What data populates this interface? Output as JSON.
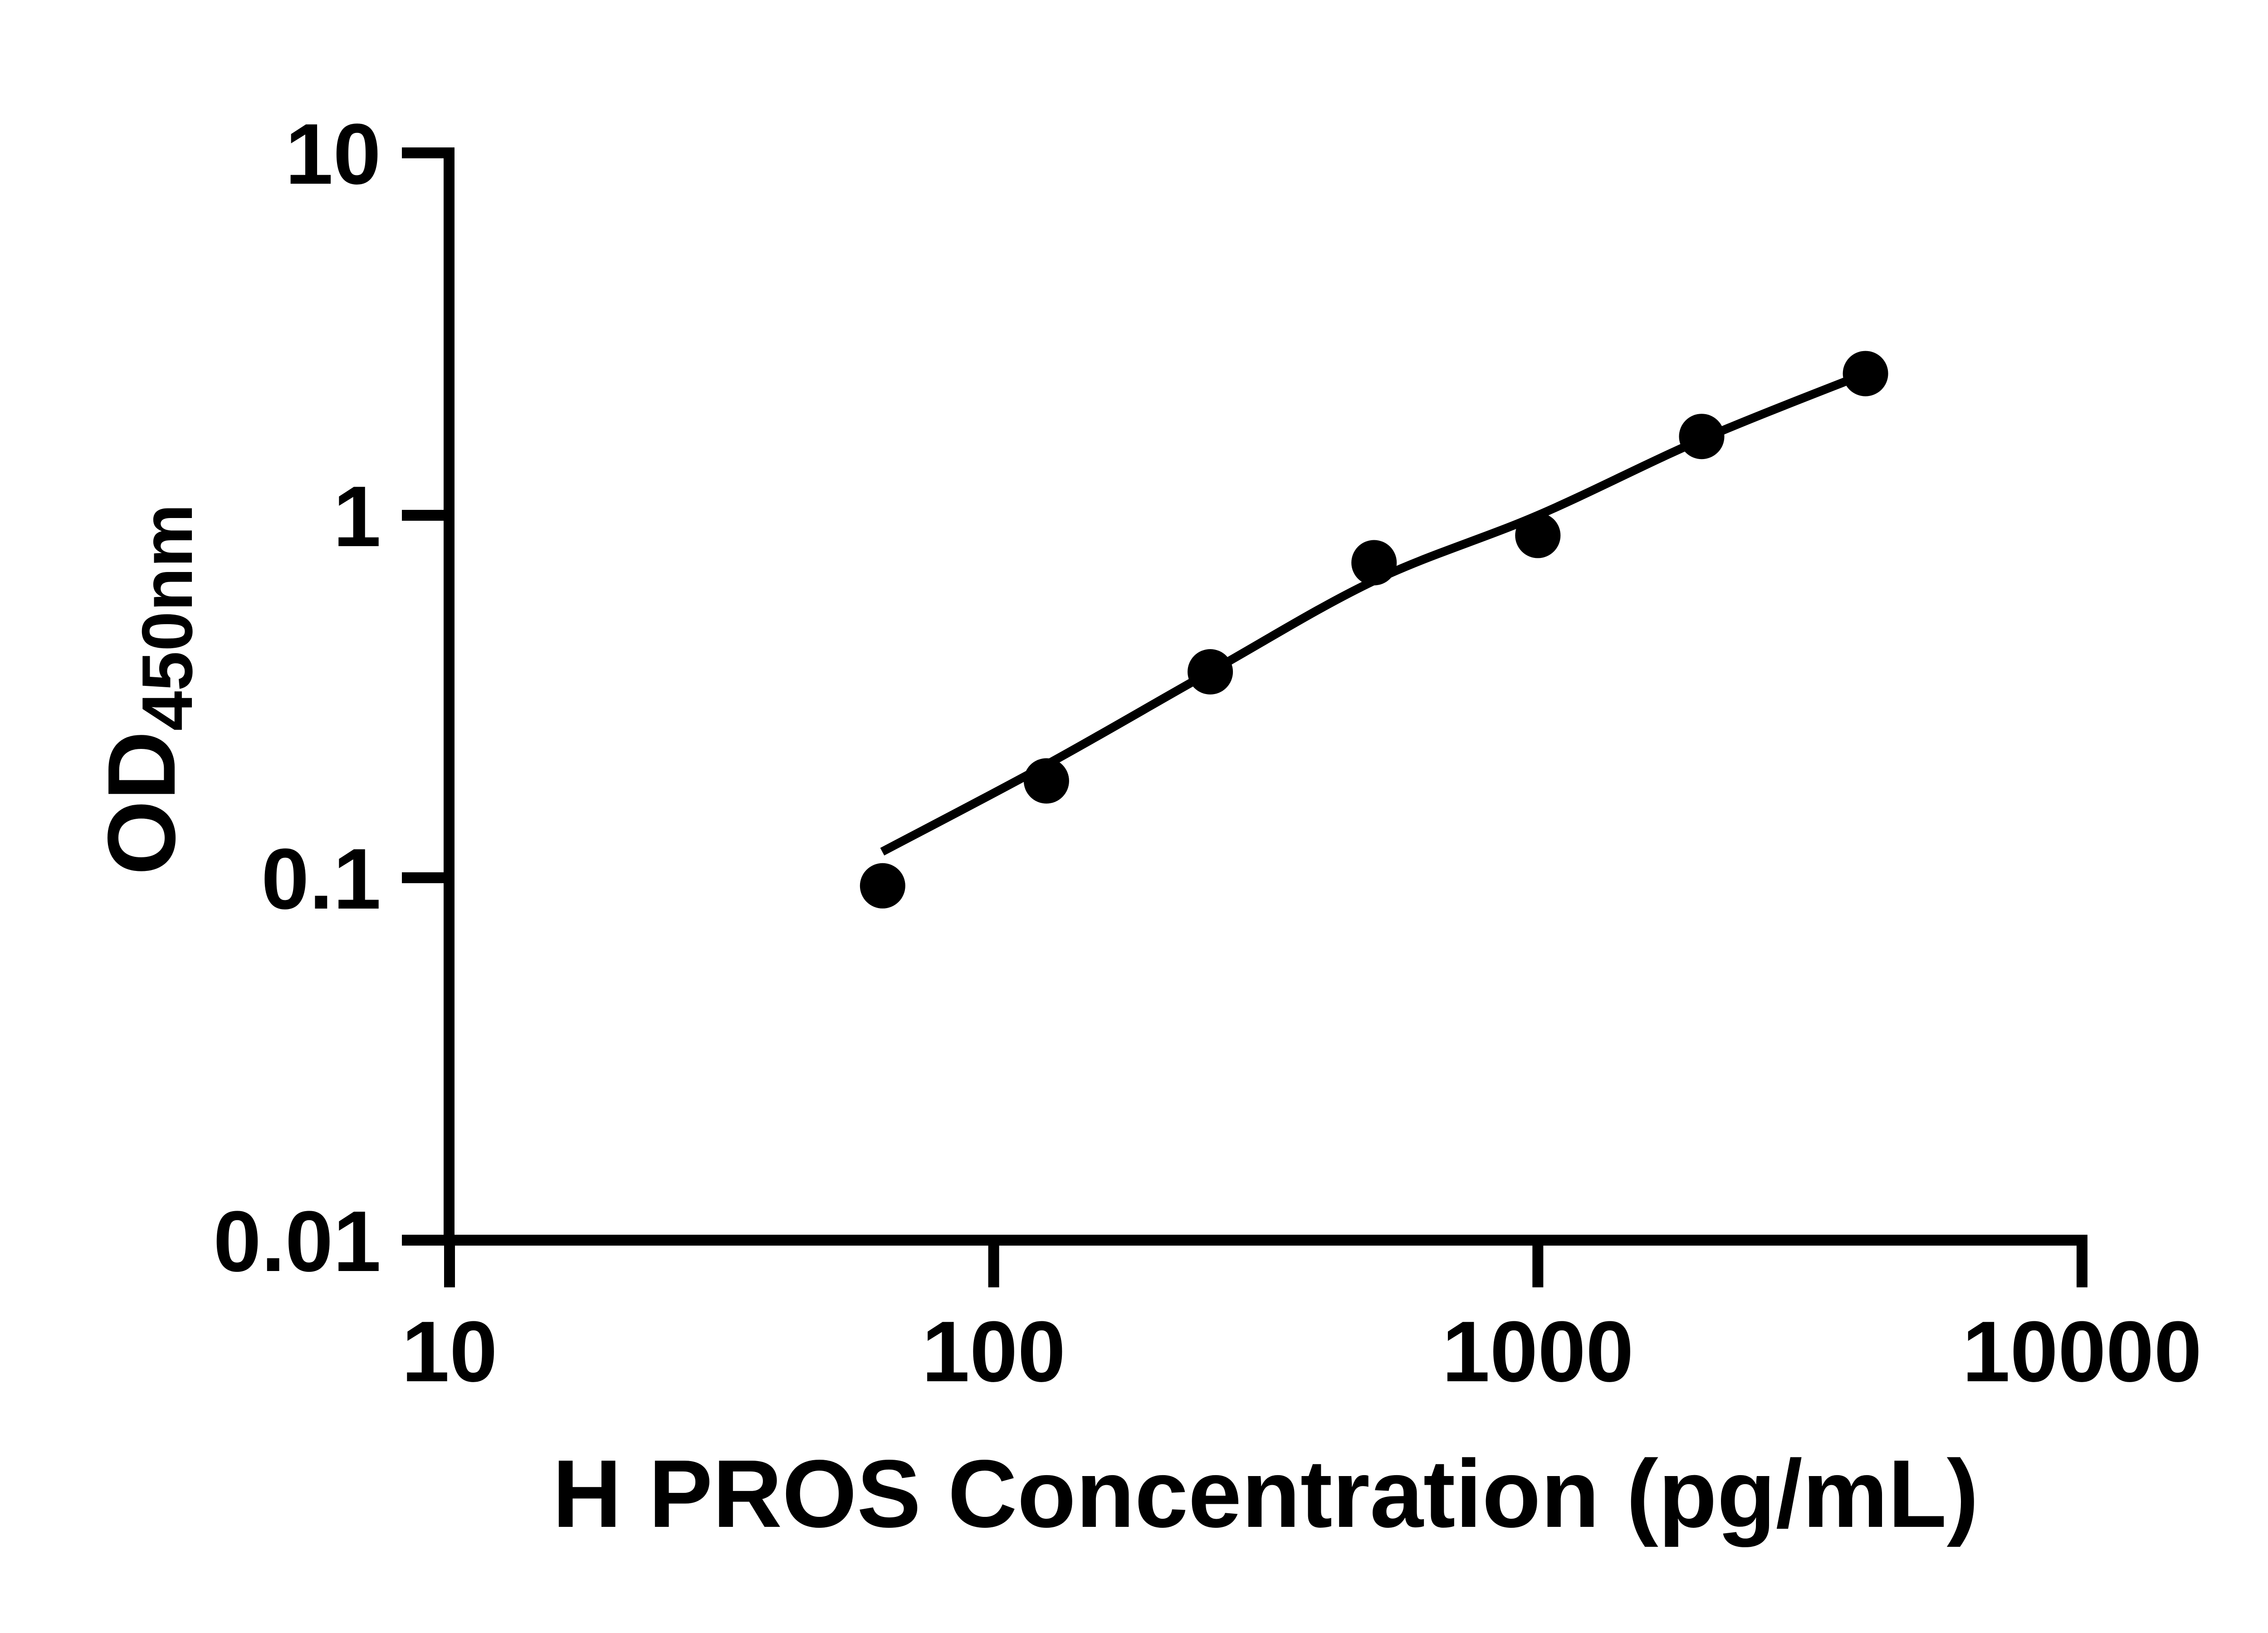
{
  "figure": {
    "background_color": "#ffffff",
    "ink_color": "#000000"
  },
  "chart_data": {
    "type": "scatter",
    "title": "",
    "xlabel": "H PROS Concentration (pg/mL)",
    "ylabel_main": "OD",
    "ylabel_sub": "450nm",
    "x_scale": "log10",
    "y_scale": "log10",
    "xlim": [
      10,
      10000
    ],
    "ylim": [
      0.01,
      10
    ],
    "grid": false,
    "legend": false,
    "x_ticks": {
      "values": [
        10,
        100,
        1000,
        10000
      ],
      "labels": [
        "10",
        "100",
        "1000",
        "10000"
      ]
    },
    "y_ticks": {
      "values": [
        10,
        1,
        0.1,
        0.01
      ],
      "labels": [
        "10",
        "1",
        "0.1",
        "0.01"
      ]
    },
    "series": [
      {
        "name": "standard-points",
        "kind": "scatter",
        "marker": "filled-circle",
        "marker_color": "#000000",
        "x": [
          62.5,
          125,
          250,
          500,
          1000,
          2000,
          4000
        ],
        "od": [
          0.095,
          0.185,
          0.37,
          0.74,
          0.88,
          1.65,
          2.46
        ]
      },
      {
        "name": "fit-curve",
        "kind": "line",
        "line_color": "#000000",
        "x": [
          62.4,
          125,
          250,
          500,
          1000,
          2000,
          4000
        ],
        "od": [
          0.118,
          0.205,
          0.37,
          0.66,
          1.0,
          1.62,
          2.46
        ]
      }
    ]
  }
}
